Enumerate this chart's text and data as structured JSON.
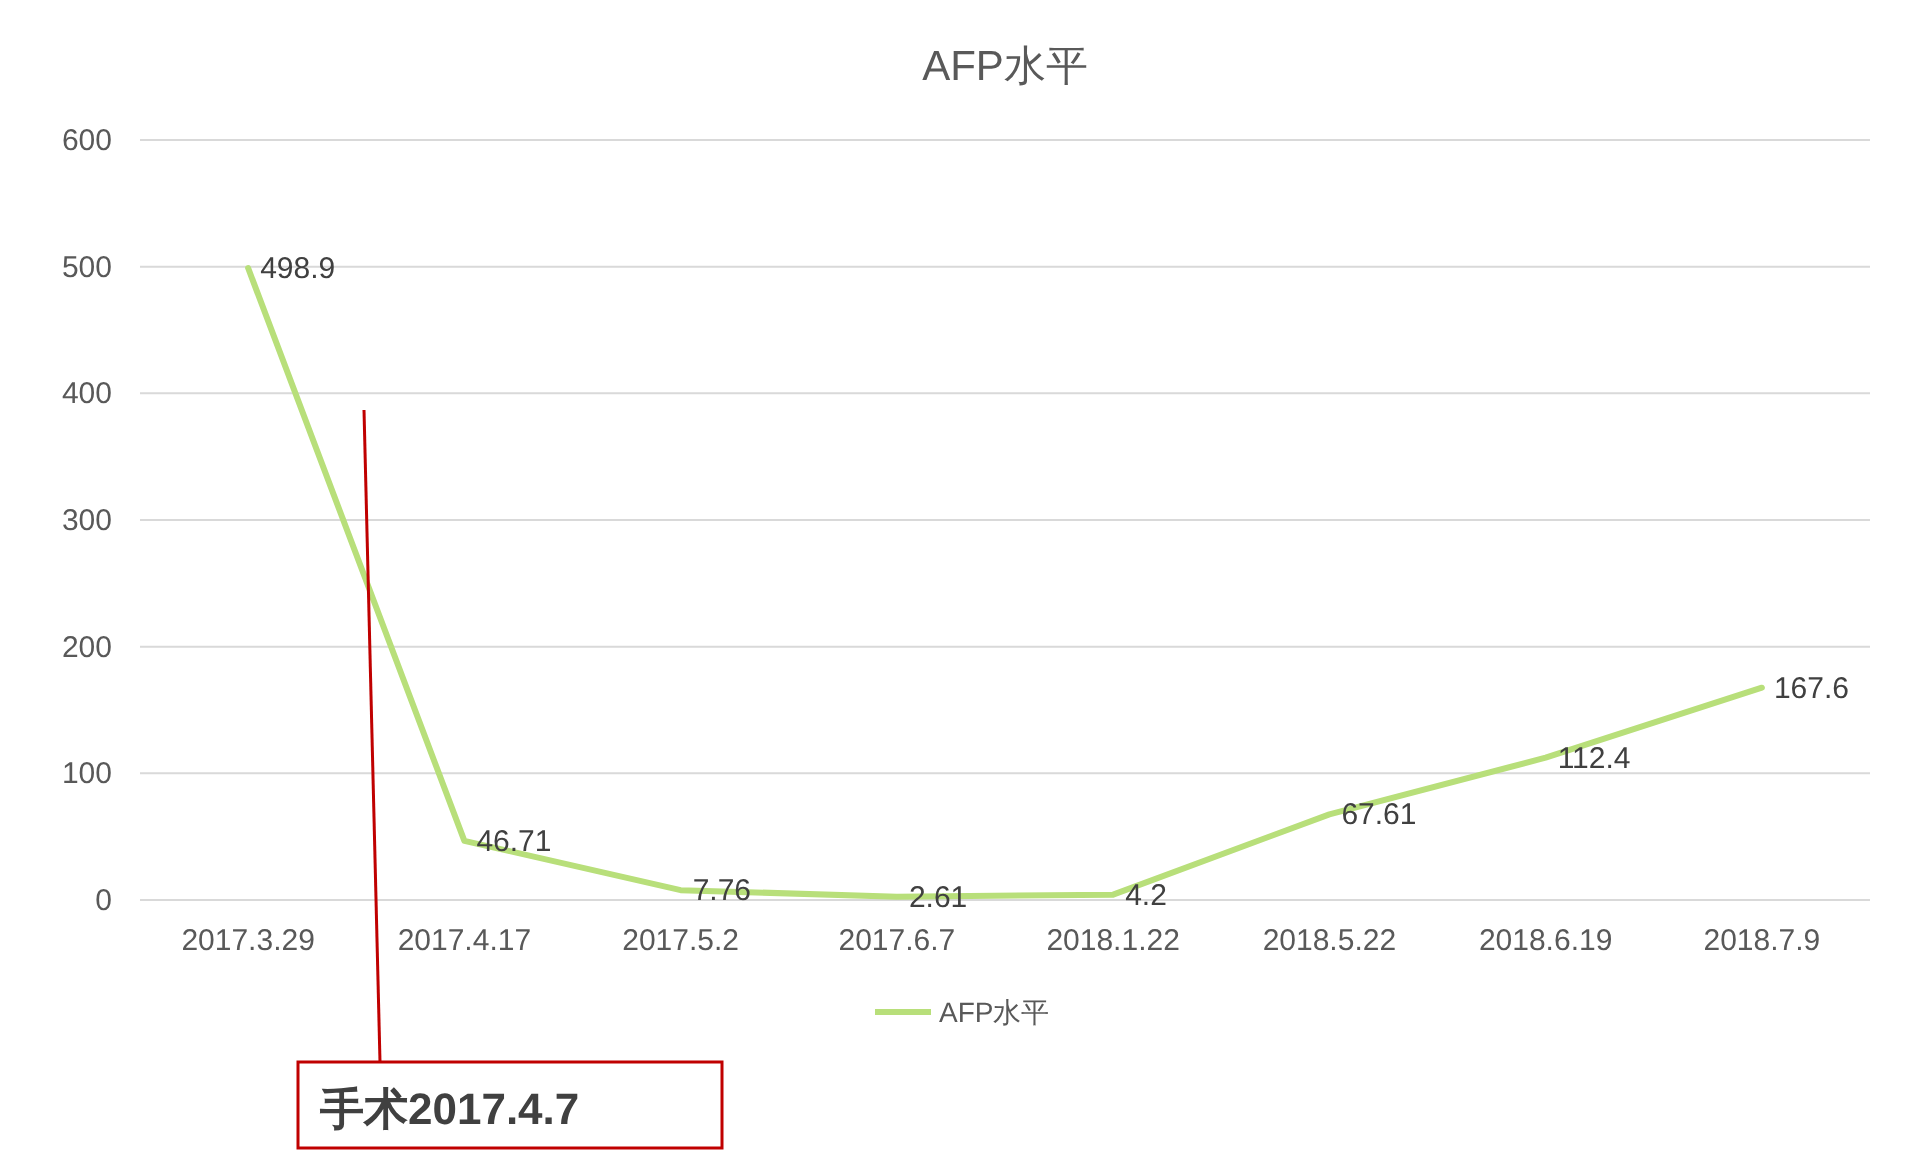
{
  "chart_data": {
    "type": "line",
    "title": "AFP水平",
    "categories": [
      "2017.3.29",
      "2017.4.17",
      "2017.5.2",
      "2017.6.7",
      "2018.1.22",
      "2018.5.22",
      "2018.6.19",
      "2018.7.9"
    ],
    "series": [
      {
        "name": "AFP水平",
        "color": "#b8df7a",
        "values": [
          498.9,
          46.71,
          7.76,
          2.61,
          4.2,
          67.61,
          112.4,
          167.6
        ]
      }
    ],
    "ylim": [
      0,
      600
    ],
    "yticks": [
      0,
      100,
      200,
      300,
      400,
      500,
      600
    ],
    "grid": "y",
    "legend": "bottom",
    "marker": "none",
    "line_style": "solid",
    "data_labels": true,
    "annotations": [
      "手术2017.4.7"
    ]
  }
}
